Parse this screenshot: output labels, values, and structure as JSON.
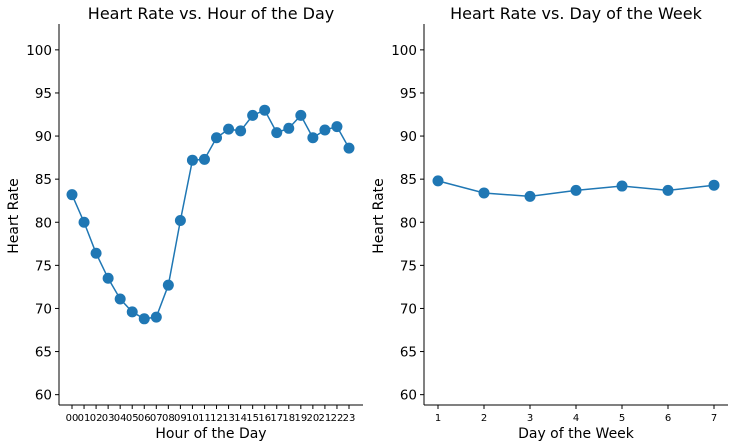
{
  "chart_data": [
    {
      "type": "line",
      "title": "Heart Rate vs. Hour of the Day",
      "xlabel": "Hour of the Day",
      "ylabel": "Heart Rate",
      "ylim": [
        58.8,
        103
      ],
      "yticks": [
        "60",
        "65",
        "70",
        "75",
        "80",
        "85",
        "90",
        "95",
        "100"
      ],
      "categories": [
        "00",
        "01",
        "02",
        "03",
        "04",
        "05",
        "06",
        "07",
        "08",
        "09",
        "10",
        "11",
        "12",
        "13",
        "14",
        "15",
        "16",
        "17",
        "18",
        "19",
        "20",
        "21",
        "22",
        "23"
      ],
      "values": [
        83.2,
        80.0,
        76.4,
        73.5,
        71.1,
        69.6,
        68.8,
        69.0,
        72.7,
        80.2,
        87.2,
        87.3,
        89.8,
        90.8,
        90.6,
        92.4,
        93.0,
        90.4,
        90.9,
        92.4,
        89.8,
        90.7,
        91.1,
        88.6
      ],
      "color": "#1f77b4"
    },
    {
      "type": "line",
      "title": "Heart Rate vs. Day of the Week",
      "xlabel": "Day of the Week",
      "ylabel": "Heart Rate",
      "ylim": [
        58.8,
        103
      ],
      "yticks": [
        "60",
        "65",
        "70",
        "75",
        "80",
        "85",
        "90",
        "95",
        "100"
      ],
      "categories": [
        "1",
        "2",
        "3",
        "4",
        "5",
        "6",
        "7"
      ],
      "values": [
        84.8,
        83.4,
        83.0,
        83.7,
        84.2,
        83.7,
        84.3
      ],
      "color": "#1f77b4"
    }
  ]
}
